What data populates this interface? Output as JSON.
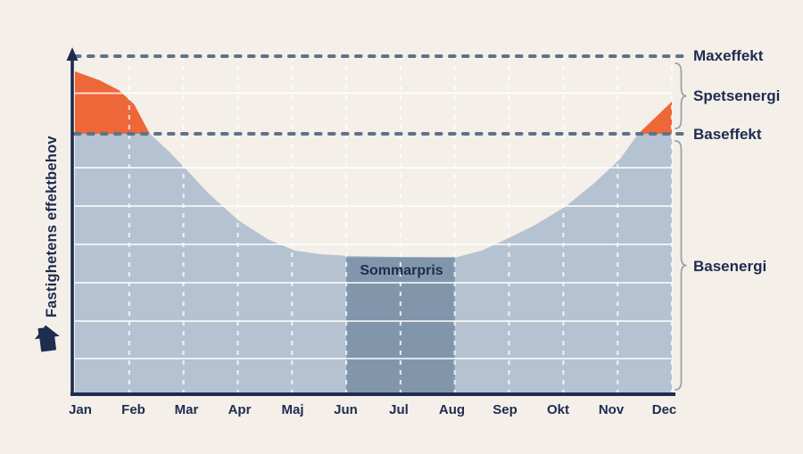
{
  "page": {
    "background_color": "#f4efe9"
  },
  "chart": {
    "y_axis_label": "Fastighetens effektbehov",
    "months": [
      "Jan",
      "Feb",
      "Mar",
      "Apr",
      "Maj",
      "Jun",
      "Jul",
      "Aug",
      "Sep",
      "Okt",
      "Nov",
      "Dec"
    ],
    "labels": {
      "maxeffekt": "Maxeffekt",
      "spetsenergi": "Spetsenergi",
      "baseffekt": "Baseffekt",
      "basenergi": "Basenergi",
      "sommarpris": "Sommarpris"
    },
    "colors": {
      "background": "#f4efe9",
      "base_area": "#b5c2d1",
      "summer_band": "#8196ab",
      "peak_area": "#ee6739",
      "text_navy": "#1e2c50",
      "dashed_line": "#5e7288",
      "gridline": "#ffffff",
      "brace": "#9aa2ab",
      "axis": "#1e2c50"
    }
  },
  "chart_data": {
    "type": "area",
    "title": "",
    "xlabel": "",
    "ylabel": "Fastighetens effektbehov",
    "categories": [
      "Jan",
      "Feb",
      "Mar",
      "Apr",
      "Maj",
      "Jun",
      "Jul",
      "Aug",
      "Sep",
      "Okt",
      "Nov",
      "Dec"
    ],
    "series": [
      {
        "name": "Fastighetens effektbehov",
        "values": [
          96,
          86,
          66,
          51,
          42,
          41,
          40,
          40,
          46,
          55,
          70,
          87
        ]
      }
    ],
    "unit": "percent of Maxeffekt (no numeric axis shown)",
    "ylim": [
      0,
      100
    ],
    "grid": true,
    "reference_lines": [
      {
        "label": "Maxeffekt",
        "value": 100,
        "style": "dashed"
      },
      {
        "label": "Baseffekt",
        "value": 77,
        "style": "dashed"
      }
    ],
    "regions": [
      {
        "label": "Sommarpris",
        "x_from": "Jun",
        "x_to": "Aug",
        "fill": "#8196ab"
      },
      {
        "label": "Spetsenergi",
        "band": "between Baseffekt and Maxeffekt",
        "fill": "#ee6739"
      },
      {
        "label": "Basenergi",
        "band": "below Baseffekt",
        "fill": "#b5c2d1"
      }
    ],
    "baseffekt_value": 76.92,
    "curve_points": [
      [
        0,
        95.5
      ],
      [
        0.46,
        92.8
      ],
      [
        0.81,
        89.9
      ],
      [
        1.09,
        85.7
      ],
      [
        1.38,
        76.92
      ],
      [
        1.74,
        71.6
      ],
      [
        2.07,
        66.0
      ],
      [
        2.45,
        59.4
      ],
      [
        3.01,
        51.2
      ],
      [
        3.55,
        45.6
      ],
      [
        4.05,
        42.2
      ],
      [
        4.54,
        41.1
      ],
      [
        5.03,
        40.6
      ],
      [
        6.02,
        40.3
      ],
      [
        7.01,
        40.1
      ],
      [
        7.5,
        42.2
      ],
      [
        7.99,
        45.9
      ],
      [
        8.49,
        49.9
      ],
      [
        9.03,
        55.2
      ],
      [
        9.56,
        62.1
      ],
      [
        10.05,
        69.5
      ],
      [
        10.38,
        76.92
      ],
      [
        10.71,
        82.0
      ],
      [
        11,
        86.5
      ]
    ],
    "summer_band_months": [
      5,
      7
    ],
    "legend_position": "right-annotations"
  }
}
